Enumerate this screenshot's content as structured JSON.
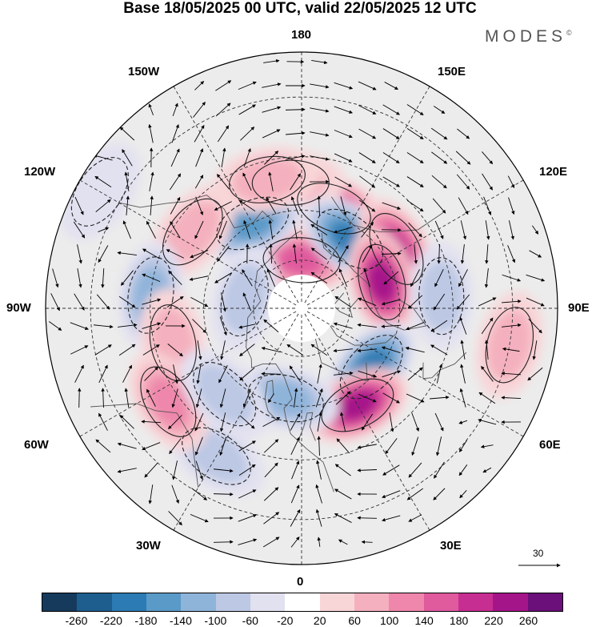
{
  "title": "Base 18/05/2025 00 UTC, valid 22/05/2025 12 UTC",
  "brand": "MODES",
  "brand_mark": "©",
  "longitude_labels": {
    "top": "180",
    "bottom": "0",
    "left": "90W",
    "right": "90E",
    "upper_left_1": "150W",
    "upper_left_2": "120W",
    "upper_right_1": "150E",
    "upper_right_2": "120E",
    "lower_left_1": "60W",
    "lower_left_2": "30W",
    "lower_right_1": "60E",
    "lower_right_2": "30E"
  },
  "reference_vector_label": "30",
  "colorbar": {
    "colors": [
      "#163a5c",
      "#1d5e8f",
      "#2d7bb4",
      "#5a9ac8",
      "#8fb4da",
      "#bcc8e4",
      "#e2e1f0",
      "#ffffff",
      "#f8d6d8",
      "#f4b0be",
      "#ee87ab",
      "#e05a9e",
      "#c72e91",
      "#a5158a",
      "#6b0f7a"
    ],
    "tick_labels": [
      "-260",
      "-220",
      "-180",
      "-140",
      "-100",
      "-60",
      "-20",
      "20",
      "60",
      "100",
      "140",
      "180",
      "220",
      "260"
    ]
  },
  "anomalies": [
    {
      "lon": 198,
      "lat": 58,
      "value": 200
    },
    {
      "lon": 180,
      "lat": 75,
      "value": 140
    },
    {
      "lon": 175,
      "lat": 52,
      "value": 80
    },
    {
      "lon": 215,
      "lat": 64,
      "value": -180
    },
    {
      "lon": 238,
      "lat": 56,
      "value": 200
    },
    {
      "lon": 252,
      "lat": 64,
      "value": 240
    },
    {
      "lon": 265,
      "lat": 48,
      "value": -60
    },
    {
      "lon": 310,
      "lat": 62,
      "value": -180
    },
    {
      "lon": 330,
      "lat": 56,
      "value": 220
    },
    {
      "lon": 10,
      "lat": 62,
      "value": -120
    },
    {
      "lon": 30,
      "lat": 40,
      "value": -80
    },
    {
      "lon": 150,
      "lat": 60,
      "value": -140
    },
    {
      "lon": 165,
      "lat": 50,
      "value": 60
    },
    {
      "lon": 125,
      "lat": 50,
      "value": 80
    },
    {
      "lon": 95,
      "lat": 45,
      "value": -100
    },
    {
      "lon": 75,
      "lat": 50,
      "value": 80
    },
    {
      "lon": 55,
      "lat": 42,
      "value": 100
    },
    {
      "lon": 42,
      "lat": 55,
      "value": -60
    },
    {
      "lon": 100,
      "lat": 72,
      "value": -60
    },
    {
      "lon": 280,
      "lat": 30,
      "value": 60
    },
    {
      "lon": 120,
      "lat": 25,
      "value": -40
    }
  ]
}
